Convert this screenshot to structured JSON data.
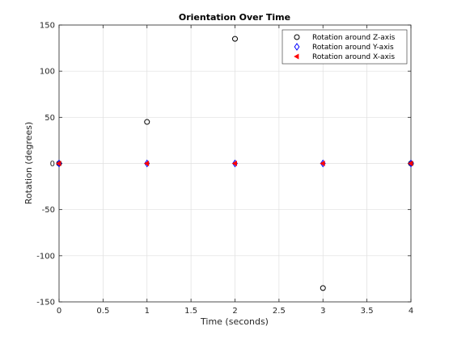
{
  "chart_data": {
    "type": "scatter",
    "title": "Orientation Over Time",
    "xlabel": "Time (seconds)",
    "ylabel": "Rotation (degrees)",
    "xlim": [
      0,
      4
    ],
    "ylim": [
      -150,
      150
    ],
    "xticks": [
      0,
      0.5,
      1,
      1.5,
      2,
      2.5,
      3,
      3.5,
      4
    ],
    "xtick_labels": [
      "0",
      "0.5",
      "1",
      "1.5",
      "2",
      "2.5",
      "3",
      "3.5",
      "4"
    ],
    "yticks": [
      -150,
      -100,
      -50,
      0,
      50,
      100,
      150
    ],
    "ytick_labels": [
      "-150",
      "-100",
      "-50",
      "0",
      "50",
      "100",
      "150"
    ],
    "grid": true,
    "legend_position": "top-right",
    "x": [
      0,
      1,
      2,
      3,
      4
    ],
    "series": [
      {
        "name": "Rotation around Z-axis",
        "marker": "circle",
        "color": "#000000",
        "fill": "none",
        "values": [
          0,
          45,
          135,
          -135,
          0
        ]
      },
      {
        "name": "Rotation around Y-axis",
        "marker": "diamond",
        "color": "#0000ff",
        "fill": "none",
        "values": [
          0,
          0,
          0,
          0,
          0
        ]
      },
      {
        "name": "Rotation around X-axis",
        "marker": "triangle-left",
        "color": "#ff0000",
        "fill": "#ff0000",
        "values": [
          0,
          0,
          0,
          0,
          0
        ]
      }
    ]
  }
}
